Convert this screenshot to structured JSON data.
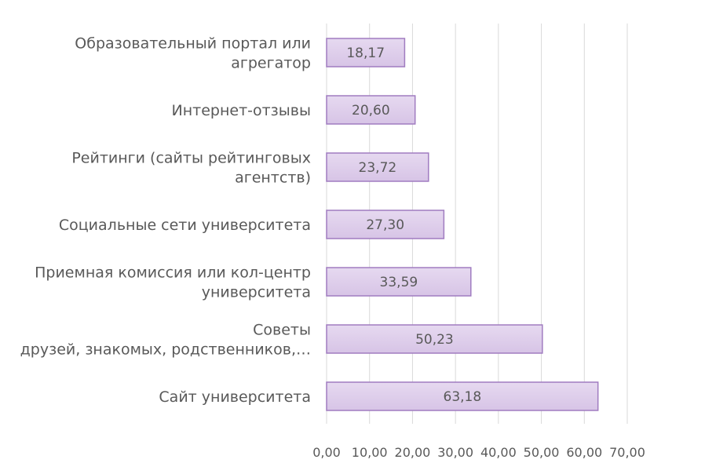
{
  "chart_data": {
    "type": "bar",
    "orientation": "horizontal",
    "categories": [
      [
        "Образовательный портал или",
        "агрегатор"
      ],
      [
        "Интернет-отзывы"
      ],
      [
        "Рейтинги (сайты рейтинговых",
        "агентств)"
      ],
      [
        "Социальные сети университета"
      ],
      [
        "Приемная комиссия или кол-центр",
        "университета"
      ],
      [
        "Советы",
        "друзей, знакомых, родственников,…"
      ],
      [
        "Сайт университета"
      ]
    ],
    "values": [
      18.17,
      20.6,
      23.72,
      27.3,
      33.59,
      50.23,
      63.18
    ],
    "data_labels": [
      "18,17",
      "20,60",
      "23,72",
      "27,30",
      "33,59",
      "50,23",
      "63,18"
    ],
    "x_ticks": [
      "0,00",
      "10,00",
      "20,00",
      "30,00",
      "40,00",
      "50,00",
      "60,00",
      "70,00"
    ],
    "xlim": [
      0,
      70
    ],
    "grid": true,
    "legend": "none",
    "bar_fill": "#d7c4e6",
    "bar_fill_light": "#e6d9f0",
    "bar_stroke": "#a07cc0",
    "gridline_color": "#d9d9d9",
    "text_color": "#595959"
  }
}
